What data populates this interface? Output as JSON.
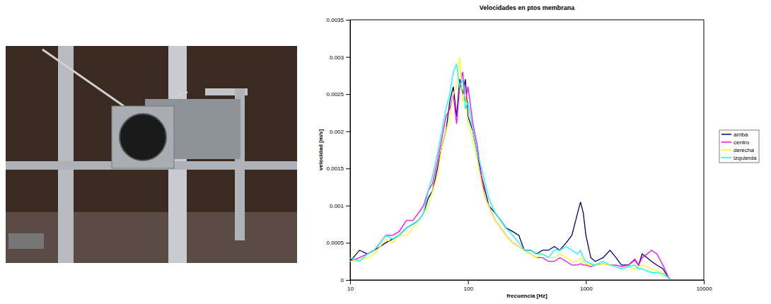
{
  "chart_data": {
    "type": "line",
    "title": "Velocidades en ptos membrana",
    "x_label": "frecuencia [Hz]",
    "y_label": "velocidad [m/s]",
    "log": "x",
    "grid": false,
    "legend": "right",
    "xlim": [
      10,
      10000
    ],
    "xticks": [
      10,
      100,
      1000,
      10000
    ],
    "ylim": [
      0,
      0.0035
    ],
    "yticks": [
      0,
      0.0005,
      0.001,
      0.0015,
      0.002,
      0.0025,
      0.003,
      0.0035
    ],
    "x": [
      10,
      12,
      14,
      16,
      18,
      20,
      23,
      26,
      30,
      34,
      38,
      42,
      46,
      50,
      55,
      60,
      65,
      70,
      75,
      80,
      85,
      90,
      95,
      100,
      110,
      120,
      130,
      140,
      150,
      170,
      190,
      210,
      240,
      270,
      300,
      340,
      380,
      430,
      480,
      540,
      600,
      680,
      760,
      850,
      900,
      950,
      1000,
      1100,
      1200,
      1400,
      1600,
      1800,
      2000,
      2300,
      2600,
      2800,
      3000,
      3300,
      3600,
      4000,
      4500,
      5000,
      5200
    ],
    "series": [
      {
        "name": "arriba",
        "color": "#000080",
        "values": [
          0.00025,
          0.0004,
          0.00035,
          0.0004,
          0.00045,
          0.0005,
          0.00055,
          0.0006,
          0.0007,
          0.00075,
          0.0008,
          0.0009,
          0.0011,
          0.0012,
          0.0015,
          0.0018,
          0.002,
          0.0024,
          0.0026,
          0.0022,
          0.0027,
          0.0025,
          0.0027,
          0.0022,
          0.002,
          0.0017,
          0.0014,
          0.0012,
          0.001,
          0.0009,
          0.0008,
          0.0007,
          0.00065,
          0.0006,
          0.0004,
          0.0004,
          0.00035,
          0.0004,
          0.0004,
          0.00045,
          0.0004,
          0.0005,
          0.0006,
          0.0009,
          0.00105,
          0.0009,
          0.0006,
          0.0003,
          0.00025,
          0.0003,
          0.0004,
          0.0003,
          0.0002,
          0.0002,
          0.00027,
          0.0002,
          0.00035,
          0.0003,
          0.00025,
          0.0002,
          0.00015,
          3e-05,
          1e-05
        ]
      },
      {
        "name": "centro",
        "color": "#ff00ff",
        "values": [
          0.00025,
          0.0003,
          0.00035,
          0.0004,
          0.0005,
          0.0006,
          0.0006,
          0.00065,
          0.0008,
          0.0008,
          0.0009,
          0.001,
          0.0012,
          0.0013,
          0.0016,
          0.0019,
          0.0022,
          0.0023,
          0.0025,
          0.0021,
          0.0026,
          0.0028,
          0.0024,
          0.0026,
          0.0021,
          0.0018,
          0.0014,
          0.0011,
          0.001,
          0.0008,
          0.0007,
          0.0006,
          0.0005,
          0.00045,
          0.0004,
          0.00035,
          0.0003,
          0.0003,
          0.00025,
          0.00025,
          0.0003,
          0.00025,
          0.0002,
          0.0002,
          0.00022,
          0.0002,
          0.0002,
          0.00018,
          0.0002,
          0.00022,
          0.0002,
          0.0002,
          0.00018,
          0.0002,
          0.00028,
          0.0002,
          0.0003,
          0.00035,
          0.0004,
          0.00035,
          0.0002,
          4e-05,
          1e-05
        ]
      },
      {
        "name": "derecha",
        "color": "#ffff00",
        "values": [
          0.00025,
          0.00028,
          0.0003,
          0.00035,
          0.00045,
          0.00055,
          0.0005,
          0.0006,
          0.0006,
          0.0007,
          0.0008,
          0.0009,
          0.001,
          0.0012,
          0.0014,
          0.0018,
          0.002,
          0.0022,
          0.0025,
          0.0026,
          0.003,
          0.0024,
          0.0025,
          0.0021,
          0.0019,
          0.0016,
          0.0013,
          0.0011,
          0.001,
          0.0008,
          0.0007,
          0.0006,
          0.0005,
          0.00045,
          0.0004,
          0.00035,
          0.0003,
          0.00035,
          0.0003,
          0.0003,
          0.00035,
          0.0003,
          0.00025,
          0.00025,
          0.0003,
          0.00025,
          0.00022,
          0.0002,
          0.0002,
          0.00022,
          0.0002,
          0.00018,
          0.00015,
          0.00018,
          0.00015,
          0.00018,
          0.0002,
          0.00018,
          0.00015,
          0.00012,
          0.0001,
          3e-05,
          1e-05
        ]
      },
      {
        "name": "izquierda",
        "color": "#00ffff",
        "values": [
          0.0003,
          0.00025,
          0.00035,
          0.0004,
          0.0005,
          0.0006,
          0.00055,
          0.0006,
          0.0007,
          0.00075,
          0.0008,
          0.0009,
          0.0012,
          0.0014,
          0.0017,
          0.002,
          0.0023,
          0.0025,
          0.0028,
          0.0029,
          0.0026,
          0.0027,
          0.0023,
          0.0024,
          0.002,
          0.0017,
          0.0015,
          0.0013,
          0.0011,
          0.0009,
          0.0008,
          0.0007,
          0.0006,
          0.0005,
          0.0004,
          0.0004,
          0.00035,
          0.00035,
          0.0003,
          0.0004,
          0.0004,
          0.00045,
          0.0004,
          0.00035,
          0.0004,
          0.0003,
          0.00025,
          0.00022,
          0.0002,
          0.00025,
          0.0002,
          0.00018,
          0.00015,
          0.00018,
          0.0002,
          0.00015,
          0.00015,
          0.00012,
          0.0001,
          0.0001,
          8e-05,
          3e-05,
          1e-05
        ]
      }
    ]
  }
}
